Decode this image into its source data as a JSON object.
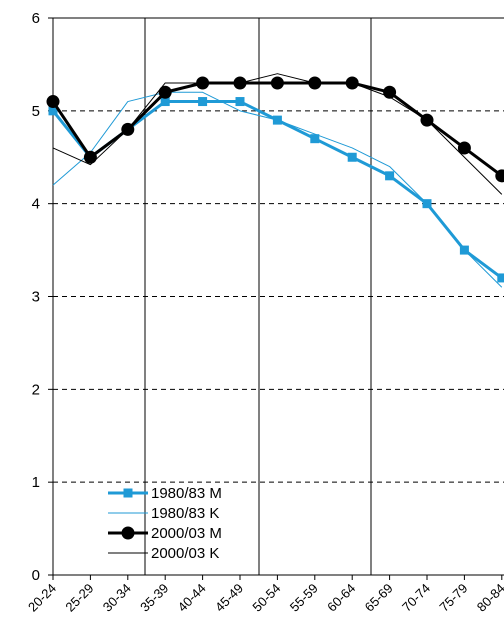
{
  "chart_data": {
    "type": "line",
    "title": "",
    "xlabel": "",
    "ylabel": "",
    "ylim": [
      0,
      6
    ],
    "yticks": [
      0,
      1,
      2,
      3,
      4,
      5,
      6
    ],
    "grid": "dashed horizontal",
    "legend_position": "bottom-left",
    "categories": [
      "20-24",
      "25-29",
      "30-34",
      "35-39",
      "40-44",
      "45-49",
      "50-54",
      "55-59",
      "60-64",
      "65-69",
      "70-74",
      "75-79",
      "80-84"
    ],
    "series": [
      {
        "name": "1980/83 M",
        "color": "#1f9ad6",
        "marker": "square",
        "width": 3,
        "values": [
          5.0,
          4.5,
          4.8,
          5.1,
          5.1,
          5.1,
          4.9,
          4.7,
          4.5,
          4.3,
          4.0,
          3.5,
          3.2
        ]
      },
      {
        "name": "1980/83 K",
        "color": "#1f9ad6",
        "marker": "none",
        "width": 1,
        "values": [
          4.2,
          4.55,
          5.1,
          5.2,
          5.2,
          5.0,
          4.9,
          4.75,
          4.6,
          4.4,
          4.0,
          3.5,
          3.1
        ]
      },
      {
        "name": "2000/03 M",
        "color": "#000000",
        "marker": "circle",
        "width": 3,
        "values": [
          5.1,
          4.5,
          4.8,
          5.2,
          5.3,
          5.3,
          5.3,
          5.3,
          5.3,
          5.2,
          4.9,
          4.6,
          4.3
        ]
      },
      {
        "name": "2000/03 K",
        "color": "#000000",
        "marker": "none",
        "width": 1,
        "values": [
          4.6,
          4.42,
          4.8,
          5.3,
          5.3,
          5.3,
          5.4,
          5.3,
          5.3,
          5.15,
          4.9,
          4.5,
          4.1
        ]
      }
    ]
  }
}
